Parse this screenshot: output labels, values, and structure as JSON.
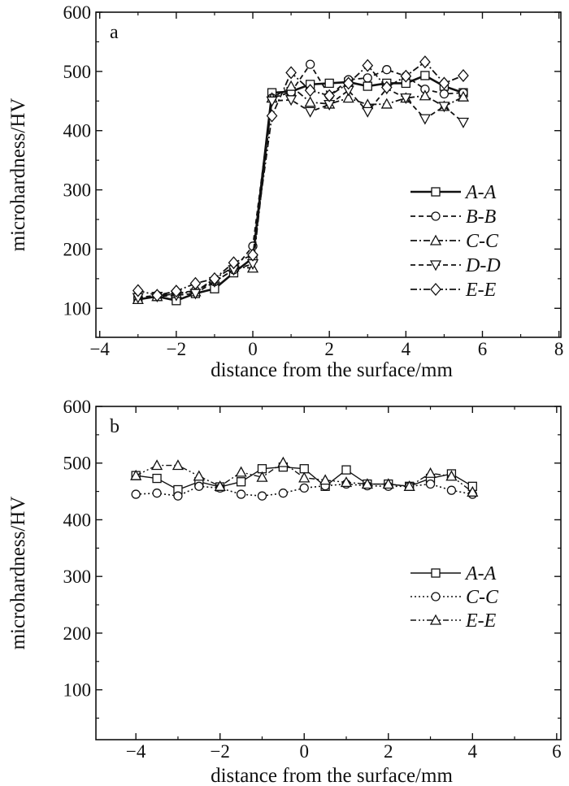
{
  "chart_data": [
    {
      "type": "line",
      "panel_label": "a",
      "xlabel": "distance from the surface/mm",
      "ylabel": "microhardness/HV",
      "xlim": [
        -4.1,
        8.05
      ],
      "ylim": [
        51,
        600
      ],
      "xticks": [
        -4,
        -2,
        0,
        2,
        4,
        6,
        8
      ],
      "yticks": [
        100,
        200,
        300,
        400,
        500,
        600
      ],
      "legend_position": "center-right",
      "x": [
        -3,
        -2.5,
        -2,
        -1.5,
        -1,
        -0.5,
        0,
        0.5,
        1,
        1.5,
        2,
        2.5,
        3,
        3.5,
        4,
        4.5,
        5,
        5.5
      ],
      "series": [
        {
          "name": "A-A",
          "marker": "square",
          "line": "solid-bold",
          "values": [
            115,
            120,
            113,
            125,
            133,
            160,
            185,
            464,
            466,
            478,
            480,
            482,
            475,
            480,
            480,
            493,
            475,
            464
          ]
        },
        {
          "name": "B-B",
          "marker": "circle",
          "line": "dashed",
          "values": [
            118,
            122,
            125,
            130,
            145,
            165,
            205,
            455,
            465,
            512,
            459,
            486,
            489,
            503,
            492,
            470,
            462,
            464
          ]
        },
        {
          "name": "C-C",
          "marker": "triangle-up",
          "line": "dash-dot",
          "values": [
            115,
            120,
            125,
            128,
            150,
            170,
            168,
            455,
            475,
            448,
            445,
            455,
            444,
            445,
            455,
            459,
            441,
            457
          ]
        },
        {
          "name": "D-D",
          "marker": "triangle-down",
          "line": "dashed",
          "values": [
            118,
            120,
            122,
            125,
            145,
            165,
            175,
            450,
            452,
            432,
            444,
            468,
            432,
            471,
            455,
            420,
            441,
            414
          ]
        },
        {
          "name": "E-E",
          "marker": "diamond",
          "line": "dash-dot",
          "values": [
            130,
            122,
            129,
            142,
            150,
            177,
            190,
            425,
            498,
            468,
            459,
            480,
            510,
            473,
            492,
            516,
            480,
            493
          ]
        }
      ]
    },
    {
      "type": "line",
      "panel_label": "b",
      "xlabel": "distance from the surface/mm",
      "ylabel": "microhardness/HV",
      "xlim": [
        -4.95,
        6.1
      ],
      "ylim": [
        12,
        600
      ],
      "xticks": [
        -4,
        -2,
        0,
        2,
        4,
        6
      ],
      "yticks": [
        100,
        200,
        300,
        400,
        500,
        600
      ],
      "legend_position": "center-right",
      "x": [
        -4,
        -3.5,
        -3,
        -2.5,
        -2,
        -1.5,
        -1,
        -0.5,
        0,
        0.5,
        1,
        1.5,
        2,
        2.5,
        3,
        3.5,
        4
      ],
      "series": [
        {
          "name": "A-A",
          "marker": "square",
          "line": "solid",
          "values": [
            478,
            473,
            453,
            467,
            458,
            467,
            490,
            493,
            490,
            459,
            488,
            463,
            463,
            459,
            473,
            481,
            459
          ]
        },
        {
          "name": "C-C",
          "marker": "circle",
          "line": "dotted",
          "values": [
            445,
            447,
            442,
            459,
            456,
            445,
            442,
            447,
            456,
            460,
            463,
            460,
            459,
            459,
            463,
            452,
            445
          ]
        },
        {
          "name": "E-E",
          "marker": "triangle-up",
          "line": "dash-dot-dot",
          "values": [
            478,
            496,
            496,
            477,
            459,
            484,
            475,
            501,
            474,
            470,
            466,
            463,
            463,
            459,
            482,
            477,
            449
          ]
        }
      ]
    }
  ]
}
